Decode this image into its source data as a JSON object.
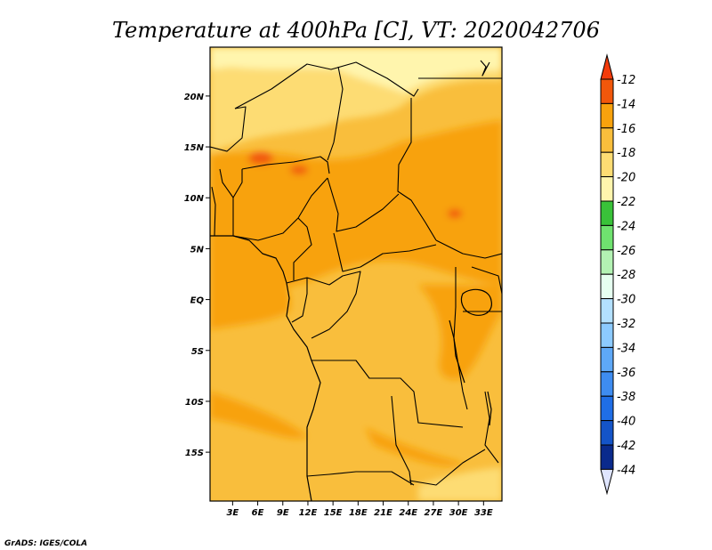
{
  "title": "Temperature at 400hPa [C], VT: 2020042706",
  "credit": "GrADS: IGES/COLA",
  "map": {
    "x_ticks": [
      "3E",
      "6E",
      "9E",
      "12E",
      "15E",
      "18E",
      "21E",
      "24E",
      "27E",
      "30E",
      "33E"
    ],
    "y_ticks": [
      "20N",
      "15N",
      "10N",
      "5N",
      "EQ",
      "5S",
      "10S",
      "15S"
    ],
    "x_tick_values": [
      3,
      6,
      9,
      12,
      15,
      18,
      21,
      24,
      27,
      30,
      33
    ],
    "y_tick_values": [
      20,
      15,
      10,
      5,
      0,
      -5,
      -10,
      -15
    ],
    "lon_range": [
      0.3,
      35.2
    ],
    "lat_range": [
      -19.8,
      24.8
    ],
    "fill_colors": {
      "base": "#f9be3c",
      "warm": "#f8a20d",
      "warmer": "#f77c05",
      "cool": "#fddc73",
      "coolest": "#fff5ad"
    }
  },
  "colorbar": {
    "labels": [
      "-12",
      "-14",
      "-16",
      "-18",
      "-20",
      "-22",
      "-24",
      "-26",
      "-28",
      "-30",
      "-32",
      "-34",
      "-36",
      "-38",
      "-40",
      "-42",
      "-44"
    ],
    "colors": [
      "#f1570b",
      "#f8a20d",
      "#f9be3c",
      "#fddc73",
      "#fff5ad",
      "#39c239",
      "#6fe26f",
      "#b3f2b3",
      "#e6fff0",
      "#b3e0ff",
      "#8ccaff",
      "#5ea8f7",
      "#3e8cf0",
      "#1f6ee6",
      "#1454c8",
      "#0a2a8c"
    ],
    "top_arrow_color": "#f33b0b",
    "bottom_arrow_color": "#dfe5ff"
  }
}
